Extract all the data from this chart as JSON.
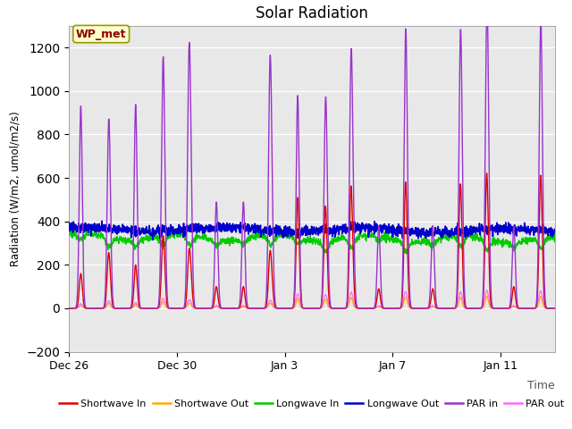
{
  "title": "Solar Radiation",
  "xlabel": "Time",
  "ylabel": "Radiation (W/m2, umol/m2/s)",
  "ylim": [
    -200,
    1300
  ],
  "yticks": [
    -200,
    0,
    200,
    400,
    600,
    800,
    1000,
    1200
  ],
  "x_tick_labels": [
    "Dec 26",
    "Dec 30",
    "Jan 3",
    "Jan 7",
    "Jan 11"
  ],
  "x_tick_pos": [
    0,
    4,
    8,
    12,
    16
  ],
  "xlim": [
    0,
    18
  ],
  "annotation": "WP_met",
  "bg_color": "#e8e8e8",
  "legend": [
    {
      "label": "Shortwave In",
      "color": "#dd0000"
    },
    {
      "label": "Shortwave Out",
      "color": "#ffaa00"
    },
    {
      "label": "Longwave In",
      "color": "#00cc00"
    },
    {
      "label": "Longwave Out",
      "color": "#0000cc"
    },
    {
      "label": "PAR in",
      "color": "#9933cc"
    },
    {
      "label": "PAR out",
      "color": "#ff66ff"
    }
  ]
}
